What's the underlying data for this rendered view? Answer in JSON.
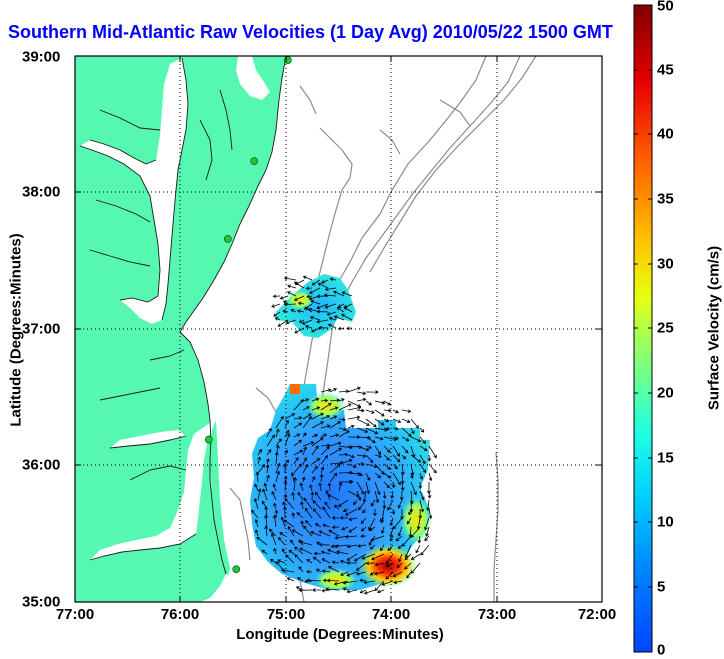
{
  "title": "Southern Mid-Atlantic Raw Velocities (1 Day Avg) 2010/05/22 1500 GMT",
  "map": {
    "xlabel": "Longitude (Degrees:Minutes)",
    "ylabel": "Latitude (Degrees:Minutes)",
    "lon_range": [
      -77.0,
      -72.0
    ],
    "lat_range": [
      35.0,
      39.0
    ],
    "x_ticks": [
      "77:00",
      "76:00",
      "75:00",
      "74:00",
      "73:00",
      "72:00"
    ],
    "y_ticks": [
      "39:00",
      "38:00",
      "37:00",
      "36:00",
      "35:00"
    ],
    "grid": "dotted",
    "land_color": "#55f7b1",
    "ocean_color": "#ffffff",
    "isobath_color": "#8c8c8c",
    "station_color": "#22c43a"
  },
  "colorbar": {
    "label": "Surface Velocity (cm/s)",
    "ticks": [
      "50",
      "45",
      "40",
      "35",
      "30",
      "25",
      "20",
      "15",
      "10",
      "5",
      "0"
    ],
    "range": [
      0,
      50
    ],
    "colormap": "jet"
  },
  "stations": [
    {
      "lon": -74.98,
      "lat": 38.97
    },
    {
      "lon": -75.3,
      "lat": 38.23
    },
    {
      "lon": -75.55,
      "lat": 37.66
    },
    {
      "lon": -75.73,
      "lat": 36.19
    },
    {
      "lon": -75.47,
      "lat": 35.24
    }
  ],
  "current_field": {
    "northern_patch": {
      "lon": [
        -75.3,
        -74.5
      ],
      "lat": [
        36.9,
        37.4
      ],
      "typical_speed": 13,
      "peak_speed": 22
    },
    "southern_patch": {
      "lon": [
        -75.3,
        -73.7
      ],
      "lat": [
        35.0,
        36.6
      ],
      "typical_speed": 7,
      "peak_speed": 45
    }
  }
}
